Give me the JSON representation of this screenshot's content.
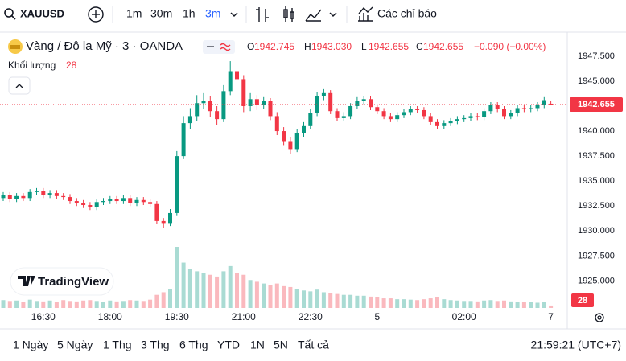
{
  "toolbar": {
    "symbol": "XAUUSD",
    "intervals": [
      "1m",
      "30m",
      "1h",
      "3m"
    ],
    "active_interval": 3,
    "indicators": "Các chỉ báo"
  },
  "chart_data": {
    "type": "candlestick",
    "title": "Vàng / Đô la Mỹ · 3 · OANDA",
    "ohlc_legend": [
      {
        "key": "O",
        "value": "1942.745"
      },
      {
        "key": "H",
        "value": "1943.030"
      },
      {
        "key": "L",
        "value": "1942.655"
      },
      {
        "key": "C",
        "value": "1942.655"
      }
    ],
    "change": "−0.090 (−0.00%)",
    "categories": [
      null,
      null,
      null,
      null,
      null,
      null,
      "16:30",
      null,
      null,
      null,
      null,
      null,
      null,
      null,
      null,
      null,
      "18:00",
      null,
      null,
      null,
      null,
      null,
      null,
      null,
      null,
      null,
      "19:30",
      null,
      null,
      null,
      null,
      null,
      null,
      null,
      null,
      null,
      "21:00",
      null,
      null,
      null,
      null,
      null,
      null,
      null,
      null,
      null,
      "22:30",
      null,
      null,
      null,
      null,
      null,
      null,
      null,
      null,
      null,
      "5",
      null,
      null,
      null,
      null,
      null,
      null,
      null,
      null,
      null,
      null,
      null,
      null,
      "02:00",
      null,
      null,
      null,
      null,
      null,
      null,
      null,
      null,
      null,
      null,
      null,
      null,
      "7"
    ],
    "open": [
      1933.3,
      1933.6,
      1933.2,
      1933.5,
      1933.3,
      1933.9,
      1934.0,
      1933.6,
      1933.8,
      1933.5,
      1933.4,
      1933.0,
      1932.8,
      1932.6,
      1932.4,
      1932.9,
      1933.0,
      1933.2,
      1933.0,
      1933.3,
      1932.8,
      1933.1,
      1932.9,
      1932.7,
      1931.0,
      1930.8,
      1931.8,
      1937.5,
      1940.8,
      1941.5,
      1942.8,
      1943.0,
      1942.0,
      1941.2,
      1944.0,
      1946.0,
      1945.2,
      1942.5,
      1943.2,
      1942.6,
      1943.0,
      1941.5,
      1940.0,
      1939.0,
      1938.2,
      1939.8,
      1940.5,
      1941.8,
      1943.5,
      1943.8,
      1942.0,
      1941.3,
      1941.5,
      1942.5,
      1943.0,
      1943.2,
      1942.4,
      1942.0,
      1941.5,
      1941.2,
      1941.6,
      1941.9,
      1942.2,
      1942.1,
      1941.5,
      1940.9,
      1940.5,
      1940.8,
      1941.0,
      1941.2,
      1941.3,
      1941.5,
      1941.4,
      1942.0,
      1942.6,
      1942.2,
      1941.5,
      1941.8,
      1942.3,
      1942.2,
      1942.3,
      1942.6,
      1942.745
    ],
    "high": [
      1933.9,
      1933.9,
      1933.8,
      1933.8,
      1934.2,
      1934.3,
      1934.3,
      1934.1,
      1934.1,
      1933.8,
      1933.7,
      1933.3,
      1933.1,
      1932.9,
      1933.2,
      1933.3,
      1933.5,
      1933.5,
      1933.6,
      1933.6,
      1933.4,
      1933.4,
      1933.2,
      1933.0,
      1931.3,
      1932.2,
      1938.0,
      1941.5,
      1942.3,
      1943.6,
      1943.8,
      1943.5,
      1942.5,
      1944.6,
      1947.0,
      1946.6,
      1945.6,
      1943.8,
      1943.6,
      1943.4,
      1943.3,
      1941.9,
      1940.4,
      1939.4,
      1940.2,
      1940.9,
      1942.2,
      1943.9,
      1944.2,
      1944.1,
      1942.3,
      1941.9,
      1942.8,
      1943.4,
      1943.5,
      1943.5,
      1942.7,
      1942.3,
      1941.8,
      1941.9,
      1942.2,
      1942.5,
      1942.5,
      1942.4,
      1941.8,
      1941.2,
      1941.1,
      1941.3,
      1941.5,
      1941.6,
      1941.8,
      1941.8,
      1942.3,
      1942.9,
      1942.9,
      1942.5,
      1942.1,
      1942.6,
      1942.6,
      1942.6,
      1942.9,
      1943.4,
      1943.03
    ],
    "low": [
      1933.0,
      1932.9,
      1932.9,
      1933.0,
      1933.0,
      1933.6,
      1933.3,
      1933.3,
      1933.2,
      1933.1,
      1932.7,
      1932.5,
      1932.3,
      1932.1,
      1932.1,
      1932.6,
      1932.7,
      1932.7,
      1932.7,
      1932.5,
      1932.5,
      1932.6,
      1932.4,
      1930.7,
      1930.3,
      1930.5,
      1931.5,
      1937.2,
      1940.2,
      1941.0,
      1942.2,
      1941.4,
      1940.6,
      1940.9,
      1943.6,
      1944.7,
      1941.9,
      1942.0,
      1942.1,
      1942.2,
      1941.1,
      1939.6,
      1938.6,
      1937.7,
      1937.9,
      1939.4,
      1940.2,
      1941.5,
      1943.1,
      1941.7,
      1941.0,
      1941.0,
      1941.2,
      1942.2,
      1942.7,
      1942.1,
      1941.7,
      1941.2,
      1940.9,
      1940.9,
      1941.3,
      1941.6,
      1941.8,
      1941.2,
      1940.6,
      1940.2,
      1940.2,
      1940.5,
      1940.7,
      1940.9,
      1941.0,
      1941.1,
      1941.1,
      1941.7,
      1941.9,
      1941.2,
      1941.2,
      1941.5,
      1941.9,
      1941.9,
      1942.0,
      1942.3,
      1942.655
    ],
    "close": [
      1933.6,
      1933.2,
      1933.5,
      1933.3,
      1933.9,
      1934.0,
      1933.6,
      1933.8,
      1933.5,
      1933.4,
      1933.0,
      1932.8,
      1932.6,
      1932.4,
      1932.9,
      1933.0,
      1933.2,
      1933.0,
      1933.3,
      1932.8,
      1933.1,
      1932.9,
      1932.7,
      1931.0,
      1930.8,
      1931.8,
      1937.5,
      1940.8,
      1941.5,
      1942.8,
      1943.0,
      1942.0,
      1941.2,
      1944.0,
      1946.0,
      1945.2,
      1942.5,
      1943.2,
      1942.6,
      1943.0,
      1941.5,
      1940.0,
      1939.0,
      1938.2,
      1939.8,
      1940.5,
      1941.8,
      1943.5,
      1943.8,
      1942.0,
      1941.3,
      1941.5,
      1942.5,
      1943.0,
      1943.2,
      1942.4,
      1942.0,
      1941.5,
      1941.2,
      1941.6,
      1941.9,
      1942.2,
      1942.1,
      1941.5,
      1940.9,
      1940.5,
      1940.8,
      1941.0,
      1941.2,
      1941.3,
      1941.5,
      1941.4,
      1942.0,
      1942.6,
      1942.2,
      1941.5,
      1941.8,
      1942.3,
      1942.2,
      1942.3,
      1942.6,
      1943.1,
      1942.655
    ],
    "up_color": "#089981",
    "down_color": "#f23645",
    "ylim": [
      1922.3,
      1949.5
    ],
    "yticks": [
      {
        "value": 1925,
        "label": "1925.000"
      },
      {
        "value": 1927.5,
        "label": "1927.500"
      },
      {
        "value": 1930,
        "label": "1930.000"
      },
      {
        "value": 1932.5,
        "label": "1932.500"
      },
      {
        "value": 1935,
        "label": "1935.000"
      },
      {
        "value": 1937.5,
        "label": "1937.500"
      },
      {
        "value": 1940,
        "label": "1940.000"
      },
      {
        "value": 1945,
        "label": "1945.000"
      },
      {
        "value": 1947.5,
        "label": "1947.500"
      }
    ],
    "grid": false,
    "volume": {
      "name": "Khối lượng",
      "values": [
        90,
        80,
        85,
        70,
        95,
        80,
        75,
        85,
        70,
        90,
        80,
        75,
        85,
        90,
        80,
        70,
        85,
        75,
        80,
        90,
        85,
        80,
        95,
        150,
        180,
        220,
        700,
        520,
        450,
        420,
        400,
        380,
        360,
        420,
        480,
        400,
        380,
        320,
        300,
        280,
        260,
        280,
        250,
        240,
        220,
        200,
        190,
        210,
        180,
        170,
        160,
        150,
        150,
        140,
        140,
        130,
        120,
        110,
        110,
        100,
        100,
        95,
        90,
        100,
        110,
        120,
        100,
        90,
        85,
        80,
        80,
        75,
        85,
        90,
        80,
        85,
        75,
        70,
        70,
        65,
        60,
        65,
        28
      ]
    }
  },
  "watermark": "TradingView",
  "footer": {
    "ranges": [
      "1 Ngày",
      "5 Ngày",
      "1 Thg",
      "3 Thg",
      "6 Thg",
      "YTD",
      "1N",
      "5N",
      "Tất cả"
    ],
    "clock": "21:59:21 (UTC+7)"
  }
}
